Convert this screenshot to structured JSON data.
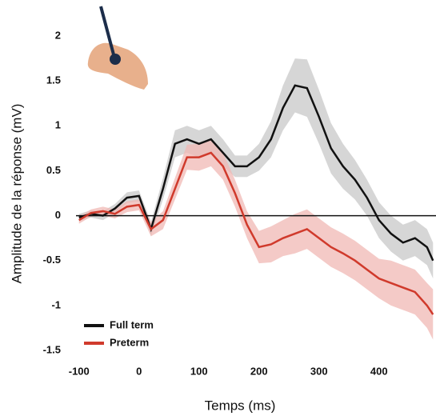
{
  "chart_data": {
    "type": "line",
    "xlabel": "Temps (ms)",
    "ylabel": "Amplitude de la réponse (mV)",
    "x": [
      -100,
      -80,
      -60,
      -40,
      -20,
      0,
      20,
      40,
      60,
      80,
      100,
      120,
      140,
      160,
      180,
      200,
      220,
      240,
      260,
      280,
      300,
      320,
      340,
      360,
      380,
      400,
      420,
      440,
      460,
      480,
      490
    ],
    "series": [
      {
        "name": "Full term",
        "color": "#111111",
        "band_color": "#c8c8c8",
        "values": [
          -0.02,
          0.02,
          0.0,
          0.08,
          0.2,
          0.22,
          -0.15,
          0.3,
          0.8,
          0.85,
          0.8,
          0.85,
          0.7,
          0.55,
          0.55,
          0.65,
          0.85,
          1.2,
          1.45,
          1.42,
          1.1,
          0.75,
          0.55,
          0.4,
          0.2,
          -0.05,
          -0.2,
          -0.3,
          -0.25,
          -0.35,
          -0.5
        ],
        "errors": [
          0.04,
          0.04,
          0.05,
          0.05,
          0.06,
          0.06,
          0.08,
          0.12,
          0.15,
          0.15,
          0.15,
          0.15,
          0.15,
          0.12,
          0.12,
          0.15,
          0.2,
          0.25,
          0.3,
          0.32,
          0.3,
          0.28,
          0.25,
          0.22,
          0.2,
          0.2,
          0.2,
          0.2,
          0.2,
          0.2,
          0.2
        ]
      },
      {
        "name": "Preterm",
        "color": "#d03a2c",
        "band_color": "#f0b8b4",
        "values": [
          -0.05,
          0.03,
          0.05,
          0.02,
          0.1,
          0.12,
          -0.15,
          -0.05,
          0.3,
          0.65,
          0.65,
          0.7,
          0.55,
          0.25,
          -0.1,
          -0.35,
          -0.32,
          -0.25,
          -0.2,
          -0.15,
          -0.25,
          -0.35,
          -0.42,
          -0.5,
          -0.6,
          -0.7,
          -0.75,
          -0.8,
          -0.85,
          -1.0,
          -1.1
        ],
        "errors": [
          0.04,
          0.04,
          0.05,
          0.05,
          0.06,
          0.06,
          0.08,
          0.1,
          0.12,
          0.14,
          0.15,
          0.15,
          0.15,
          0.15,
          0.15,
          0.18,
          0.2,
          0.2,
          0.22,
          0.22,
          0.22,
          0.22,
          0.22,
          0.22,
          0.22,
          0.22,
          0.25,
          0.25,
          0.25,
          0.25,
          0.28
        ]
      }
    ],
    "xlim": [
      -105,
      495
    ],
    "ylim": [
      -1.5,
      2
    ],
    "xticks": [
      -100,
      0,
      100,
      200,
      300,
      400
    ],
    "yticks": [
      2,
      1.5,
      1,
      0.5,
      0,
      -0.5,
      -1,
      -1.5
    ],
    "legend": "lower left"
  }
}
